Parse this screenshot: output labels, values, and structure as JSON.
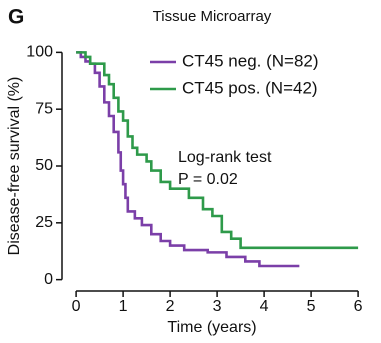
{
  "chart_data": {
    "type": "line",
    "step": true,
    "panel_label": "G",
    "title": "Tissue Microarray",
    "x_label": "Time (years)",
    "y_label": "Disease-free survival (%)",
    "annotations": [
      "Log-rank test",
      "P = 0.02"
    ],
    "legend": "top-right",
    "xlim": [
      -0.3,
      6.2
    ],
    "xticks": [
      0,
      1,
      2,
      3,
      4,
      5,
      6
    ],
    "ylim": [
      -5,
      105
    ],
    "yticks": [
      0,
      25,
      50,
      75,
      100
    ],
    "series": [
      {
        "name": "CT45 neg. (N=82)",
        "color": "#7b3fa8",
        "x": [
          0,
          0.1,
          0.2,
          0.3,
          0.4,
          0.5,
          0.6,
          0.7,
          0.8,
          0.9,
          0.95,
          1.0,
          1.05,
          1.1,
          1.25,
          1.4,
          1.6,
          1.8,
          2.0,
          2.3,
          2.8,
          3.2,
          3.6,
          3.9,
          4.75
        ],
        "values": [
          100,
          98,
          96,
          95,
          91,
          85,
          78,
          72,
          65,
          56,
          48,
          42,
          36,
          30,
          27,
          24,
          20,
          17,
          15,
          13,
          12,
          10,
          8,
          6,
          6
        ]
      },
      {
        "name": "CT45 pos. (N=42)",
        "color": "#2e9a4a",
        "x": [
          0,
          0.2,
          0.3,
          0.6,
          0.7,
          0.8,
          0.9,
          1.0,
          1.1,
          1.2,
          1.3,
          1.5,
          1.6,
          1.8,
          2.0,
          2.4,
          2.7,
          2.9,
          3.1,
          3.3,
          3.5,
          6.0
        ],
        "values": [
          100,
          98,
          95,
          90,
          86,
          80,
          74,
          70,
          63,
          58,
          55,
          52,
          48,
          43,
          40,
          36,
          31,
          28,
          21,
          18,
          14,
          14
        ]
      }
    ]
  }
}
